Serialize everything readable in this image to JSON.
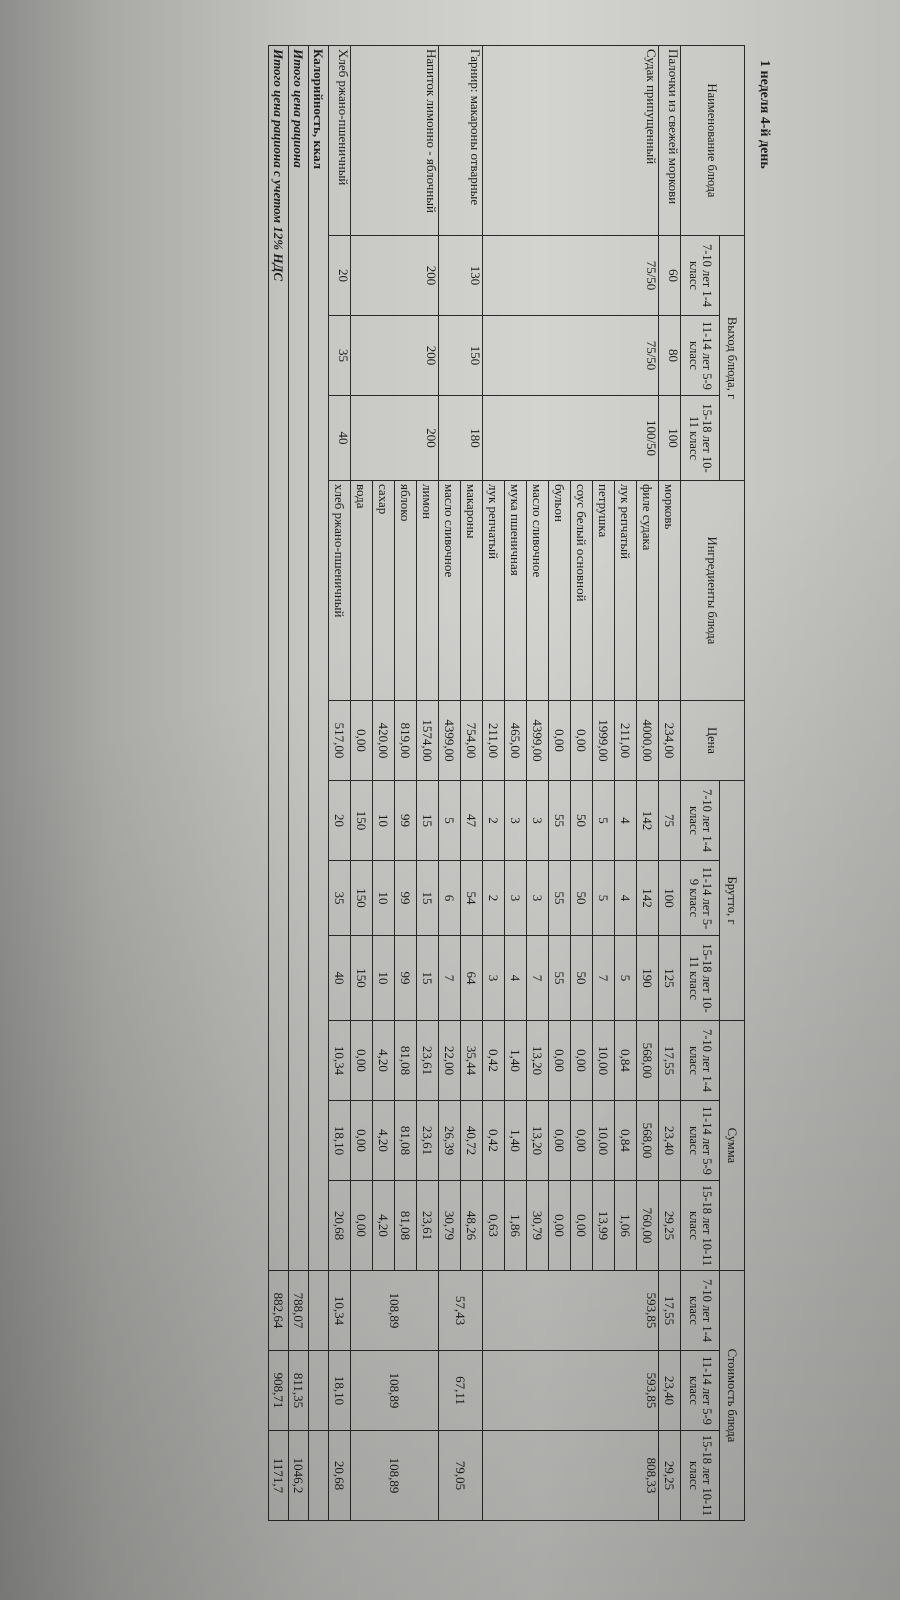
{
  "title": "1 неделя 4-й день",
  "headers": {
    "dish": "Наименование блюда",
    "yield": "Выход блюда, г",
    "ingredients": "Ингредиенты блюда",
    "price": "Цена",
    "gross": "Брутто, г",
    "sum": "Сумма",
    "cost": "Стоимость блюда",
    "age_groups": [
      "7-10 лет 1-4 класс",
      "11-14 лет 5-9 класс",
      "15-18 лет 10-11 класс"
    ]
  },
  "dishes": [
    {
      "name": "Палочки из свежей моркови",
      "yield": [
        "60",
        "80",
        "100"
      ],
      "cost": [
        "17,55",
        "23,40",
        "29,25"
      ],
      "ingredients": [
        {
          "name": "морковь",
          "price": "234,00",
          "gross": [
            "75",
            "100",
            "125"
          ],
          "sum": [
            "17,55",
            "23,40",
            "29,25"
          ]
        }
      ]
    },
    {
      "name": "Судак припущенный",
      "yield": [
        "75/50",
        "75/50",
        "100/50"
      ],
      "cost": [
        "593,85",
        "593,85",
        "808,33"
      ],
      "ingredients": [
        {
          "name": "филе судака",
          "price": "4000,00",
          "gross": [
            "142",
            "142",
            "190"
          ],
          "sum": [
            "568,00",
            "568,00",
            "760,00"
          ]
        },
        {
          "name": "лук репчатый",
          "price": "211,00",
          "gross": [
            "4",
            "4",
            "5"
          ],
          "sum": [
            "0,84",
            "0,84",
            "1,06"
          ]
        },
        {
          "name": "петрушка",
          "price": "1999,00",
          "gross": [
            "5",
            "5",
            "7"
          ],
          "sum": [
            "10,00",
            "10,00",
            "13,99"
          ]
        },
        {
          "name": "соус белый основной",
          "price": "0,00",
          "gross": [
            "50",
            "50",
            "50"
          ],
          "sum": [
            "0,00",
            "0,00",
            "0,00"
          ]
        },
        {
          "name": "бульон",
          "price": "0,00",
          "gross": [
            "55",
            "55",
            "55"
          ],
          "sum": [
            "0,00",
            "0,00",
            "0,00"
          ]
        },
        {
          "name": "масло сливочное",
          "price": "4399,00",
          "gross": [
            "3",
            "3",
            "7"
          ],
          "sum": [
            "13,20",
            "13,20",
            "30,79"
          ]
        },
        {
          "name": "мука пшеничная",
          "price": "465,00",
          "gross": [
            "3",
            "3",
            "4"
          ],
          "sum": [
            "1,40",
            "1,40",
            "1,86"
          ]
        },
        {
          "name": "лук репчатый",
          "price": "211,00",
          "gross": [
            "2",
            "2",
            "3"
          ],
          "sum": [
            "0,42",
            "0,42",
            "0,63"
          ]
        }
      ]
    },
    {
      "name": "Гарнир: макароны отварные",
      "yield": [
        "130",
        "150",
        "180"
      ],
      "cost": [
        "57,43",
        "67,11",
        "79,05"
      ],
      "ingredients": [
        {
          "name": "макароны",
          "price": "754,00",
          "gross": [
            "47",
            "54",
            "64"
          ],
          "sum": [
            "35,44",
            "40,72",
            "48,26"
          ]
        },
        {
          "name": "масло сливочное",
          "price": "4399,00",
          "gross": [
            "5",
            "6",
            "7"
          ],
          "sum": [
            "22,00",
            "26,39",
            "30,79"
          ]
        }
      ]
    },
    {
      "name": "Напиток лимонно - яблочный",
      "yield": [
        "200",
        "200",
        "200"
      ],
      "cost": [
        "108,89",
        "108,89",
        "108,89"
      ],
      "ingredients": [
        {
          "name": "лимон",
          "price": "1574,00",
          "gross": [
            "15",
            "15",
            "15"
          ],
          "sum": [
            "23,61",
            "23,61",
            "23,61"
          ]
        },
        {
          "name": "яблоко",
          "price": "819,00",
          "gross": [
            "99",
            "99",
            "99"
          ],
          "sum": [
            "81,08",
            "81,08",
            "81,08"
          ]
        },
        {
          "name": "сахар",
          "price": "420,00",
          "gross": [
            "10",
            "10",
            "10"
          ],
          "sum": [
            "4,20",
            "4,20",
            "4,20"
          ]
        },
        {
          "name": "вода",
          "price": "0,00",
          "gross": [
            "150",
            "150",
            "150"
          ],
          "sum": [
            "0,00",
            "0,00",
            "0,00"
          ]
        }
      ]
    },
    {
      "name": "Хлеб ржано-пшеничный",
      "yield": [
        "20",
        "35",
        "40"
      ],
      "cost": [
        "10,34",
        "18,10",
        "20,68"
      ],
      "ingredients": [
        {
          "name": "хлеб ржано-пшеничный",
          "price": "517,00",
          "gross": [
            "20",
            "35",
            "40"
          ],
          "sum": [
            "10,34",
            "18,10",
            "20,68"
          ]
        }
      ]
    }
  ],
  "totals": [
    {
      "label": "Калорийность, ккал",
      "values": [
        "",
        "",
        ""
      ]
    },
    {
      "label": "Итого цена рациона",
      "values": [
        "788,07",
        "811,35",
        "1046,2"
      ]
    },
    {
      "label": "Итого цена рациона с учетом 12% НДС",
      "values": [
        "882,64",
        "908,71",
        "1171,7"
      ]
    }
  ]
}
